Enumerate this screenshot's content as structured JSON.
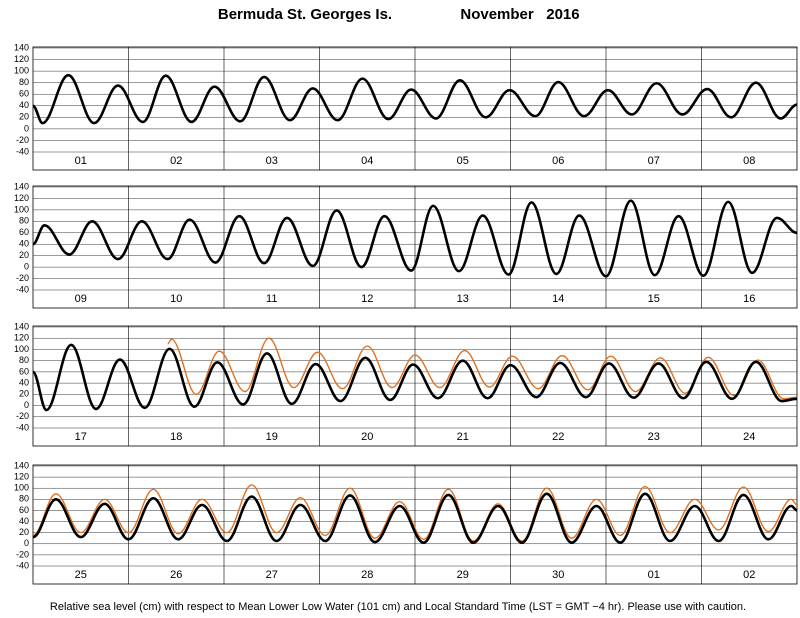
{
  "header": {
    "station": "Bermuda St. Georges Is.",
    "month": "November   2016"
  },
  "footer": "Relative sea level (cm) with respect to Mean Lower Low Water (101 cm) and Local Standard Time (LST = GMT −4 hr). Please use with caution.",
  "chart_data": [
    {
      "type": "line",
      "xlim": [
        0,
        8
      ],
      "ylim": [
        -40,
        140
      ],
      "yticks": [
        -40,
        -20,
        0,
        20,
        40,
        60,
        80,
        100,
        120,
        140
      ],
      "xticks": [
        {
          "value": 0.5,
          "label": "01"
        },
        {
          "value": 1.5,
          "label": "02"
        },
        {
          "value": 2.5,
          "label": "03"
        },
        {
          "value": 3.5,
          "label": "04"
        },
        {
          "value": 4.5,
          "label": "05"
        },
        {
          "value": 5.5,
          "label": "06"
        },
        {
          "value": 6.5,
          "label": "07"
        },
        {
          "value": 7.5,
          "label": "08"
        }
      ],
      "series": [
        {
          "color": "#000000",
          "x": [
            0,
            0.1,
            0.37,
            0.64,
            0.89,
            1.15,
            1.39,
            1.66,
            1.9,
            2.17,
            2.42,
            2.69,
            2.93,
            3.19,
            3.45,
            3.72,
            3.96,
            4.22,
            4.47,
            4.74,
            4.99,
            5.26,
            5.5,
            5.77,
            6.02,
            6.27,
            6.53,
            6.8,
            7.06,
            7.31,
            7.57,
            7.83,
            8
          ],
          "values": [
            40,
            10,
            93,
            10,
            75,
            12,
            92,
            12,
            73,
            13,
            90,
            15,
            70,
            15,
            87,
            17,
            68,
            18,
            84,
            20,
            67,
            22,
            81,
            22,
            67,
            25,
            79,
            25,
            69,
            20,
            80,
            18,
            42
          ]
        }
      ]
    },
    {
      "type": "line",
      "xlim": [
        0,
        8
      ],
      "ylim": [
        -40,
        140
      ],
      "yticks": [
        -40,
        -20,
        0,
        20,
        40,
        60,
        80,
        100,
        120,
        140
      ],
      "xticks": [
        {
          "value": 0.5,
          "label": "09"
        },
        {
          "value": 1.5,
          "label": "10"
        },
        {
          "value": 2.5,
          "label": "11"
        },
        {
          "value": 3.5,
          "label": "12"
        },
        {
          "value": 4.5,
          "label": "13"
        },
        {
          "value": 5.5,
          "label": "14"
        },
        {
          "value": 6.5,
          "label": "15"
        },
        {
          "value": 7.5,
          "label": "16"
        }
      ],
      "series": [
        {
          "color": "#000000",
          "x": [
            0,
            0.12,
            0.38,
            0.62,
            0.89,
            1.14,
            1.41,
            1.64,
            1.91,
            2.16,
            2.42,
            2.66,
            2.93,
            3.18,
            3.44,
            3.68,
            3.96,
            4.19,
            4.46,
            4.71,
            4.98,
            5.22,
            5.48,
            5.72,
            6.0,
            6.26,
            6.51,
            6.76,
            7.02,
            7.28,
            7.53,
            7.79,
            8
          ],
          "values": [
            40,
            73,
            22,
            80,
            14,
            80,
            14,
            83,
            8,
            89,
            7,
            86,
            2,
            99,
            0,
            89,
            -6,
            107,
            -7,
            90,
            -13,
            113,
            -12,
            90,
            -16,
            116,
            -14,
            89,
            -15,
            114,
            -10,
            86,
            60
          ]
        }
      ]
    },
    {
      "type": "line",
      "xlim": [
        0,
        8
      ],
      "ylim": [
        -40,
        140
      ],
      "yticks": [
        -40,
        -20,
        0,
        20,
        40,
        60,
        80,
        100,
        120,
        140
      ],
      "xticks": [
        {
          "value": 0.5,
          "label": "17"
        },
        {
          "value": 1.5,
          "label": "18"
        },
        {
          "value": 2.5,
          "label": "19"
        },
        {
          "value": 3.5,
          "label": "20"
        },
        {
          "value": 4.5,
          "label": "21"
        },
        {
          "value": 5.5,
          "label": "22"
        },
        {
          "value": 6.5,
          "label": "23"
        },
        {
          "value": 7.5,
          "label": "24"
        }
      ],
      "series": [
        {
          "color": "#e07020",
          "x": [
            1.41,
            1.45,
            1.71,
            1.95,
            2.22,
            2.47,
            2.73,
            2.98,
            3.24,
            3.5,
            3.76,
            4.0,
            4.26,
            4.52,
            4.78,
            5.02,
            5.29,
            5.54,
            5.81,
            6.05,
            6.31,
            6.57,
            6.83,
            7.07,
            7.34,
            7.59,
            7.86,
            8
          ],
          "values": [
            110,
            118,
            20,
            97,
            25,
            120,
            32,
            95,
            30,
            106,
            32,
            90,
            32,
            98,
            33,
            88,
            30,
            89,
            28,
            88,
            25,
            85,
            22,
            86,
            18,
            81,
            12,
            15
          ]
        },
        {
          "color": "#000000",
          "x": [
            0,
            0.14,
            0.4,
            0.66,
            0.91,
            1.17,
            1.43,
            1.69,
            1.93,
            2.2,
            2.45,
            2.71,
            2.96,
            3.22,
            3.48,
            3.74,
            3.98,
            4.24,
            4.5,
            4.76,
            5.0,
            5.27,
            5.52,
            5.79,
            6.03,
            6.29,
            6.55,
            6.81,
            7.05,
            7.32,
            7.57,
            7.84,
            8
          ],
          "values": [
            60,
            -8,
            108,
            -6,
            82,
            -4,
            101,
            -2,
            77,
            2,
            93,
            3,
            74,
            8,
            85,
            10,
            73,
            13,
            80,
            13,
            72,
            15,
            76,
            15,
            75,
            14,
            75,
            13,
            78,
            12,
            78,
            8,
            12
          ]
        }
      ]
    },
    {
      "type": "line",
      "xlim": [
        0,
        8
      ],
      "ylim": [
        -40,
        140
      ],
      "yticks": [
        -40,
        -20,
        0,
        20,
        40,
        60,
        80,
        100,
        120,
        140
      ],
      "xticks": [
        {
          "value": 0.5,
          "label": "25"
        },
        {
          "value": 1.5,
          "label": "26"
        },
        {
          "value": 2.5,
          "label": "27"
        },
        {
          "value": 3.5,
          "label": "28"
        },
        {
          "value": 4.5,
          "label": "29"
        },
        {
          "value": 5.5,
          "label": "30"
        },
        {
          "value": 6.5,
          "label": "01"
        },
        {
          "value": 7.5,
          "label": "02"
        }
      ],
      "series": [
        {
          "color": "#e07020",
          "x": [
            0,
            0.24,
            0.5,
            0.75,
            1.0,
            1.26,
            1.52,
            1.77,
            2.03,
            2.29,
            2.55,
            2.8,
            3.06,
            3.32,
            3.58,
            3.84,
            4.09,
            4.35,
            4.61,
            4.87,
            5.12,
            5.38,
            5.64,
            5.9,
            6.15,
            6.41,
            6.67,
            6.93,
            7.18,
            7.44,
            7.7,
            7.94,
            8
          ],
          "values": [
            15,
            90,
            20,
            80,
            20,
            98,
            18,
            80,
            20,
            106,
            20,
            83,
            15,
            100,
            10,
            76,
            8,
            98,
            5,
            72,
            5,
            100,
            10,
            80,
            15,
            103,
            20,
            80,
            25,
            102,
            22,
            80,
            70
          ]
        },
        {
          "color": "#000000",
          "x": [
            0,
            0.24,
            0.5,
            0.75,
            1.0,
            1.26,
            1.52,
            1.77,
            2.03,
            2.29,
            2.55,
            2.8,
            3.06,
            3.32,
            3.58,
            3.84,
            4.09,
            4.35,
            4.61,
            4.87,
            5.12,
            5.38,
            5.64,
            5.9,
            6.15,
            6.41,
            6.67,
            6.93,
            7.18,
            7.44,
            7.7,
            7.94,
            8
          ],
          "values": [
            12,
            80,
            12,
            72,
            8,
            82,
            8,
            70,
            5,
            85,
            5,
            70,
            5,
            87,
            3,
            68,
            2,
            88,
            2,
            68,
            2,
            90,
            2,
            68,
            2,
            90,
            5,
            68,
            5,
            88,
            8,
            68,
            60
          ]
        }
      ]
    }
  ]
}
